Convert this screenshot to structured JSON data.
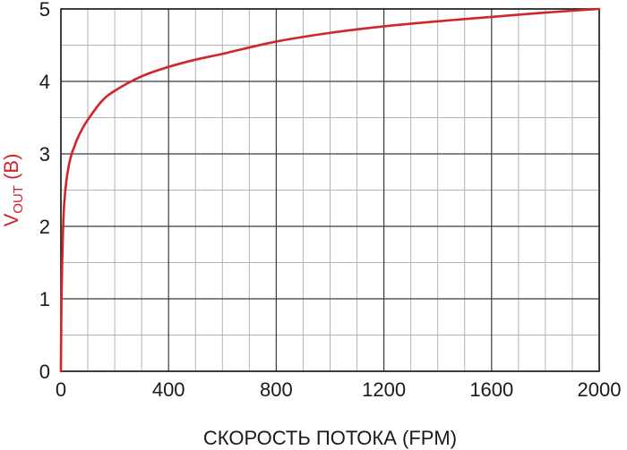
{
  "chart_data": {
    "type": "line",
    "title": "",
    "xlabel": "СКОРОСТЬ ПОТОКА (FPM)",
    "ylabel": {
      "main": "V",
      "sub": "OUT",
      "rest": " (В)"
    },
    "xlim": [
      0,
      2000
    ],
    "ylim": [
      0,
      5
    ],
    "x_ticks": [
      0,
      400,
      800,
      1200,
      1600,
      2000
    ],
    "y_ticks": [
      0,
      1,
      2,
      3,
      4,
      5
    ],
    "x_minor_step": 100,
    "y_minor_step": 0.5,
    "grid": true,
    "series": [
      {
        "color": "#d1242b",
        "x": [
          0,
          2,
          5,
          8,
          12,
          20,
          30,
          40,
          50,
          60,
          80,
          100,
          150,
          200,
          300,
          400,
          500,
          600,
          800,
          1000,
          1200,
          1400,
          1600,
          1800,
          2000
        ],
        "y": [
          0,
          0.95,
          1.55,
          1.95,
          2.3,
          2.62,
          2.85,
          3.0,
          3.1,
          3.2,
          3.35,
          3.47,
          3.72,
          3.87,
          4.07,
          4.2,
          4.3,
          4.38,
          4.55,
          4.67,
          4.76,
          4.83,
          4.89,
          4.95,
          5.0
        ]
      }
    ]
  }
}
